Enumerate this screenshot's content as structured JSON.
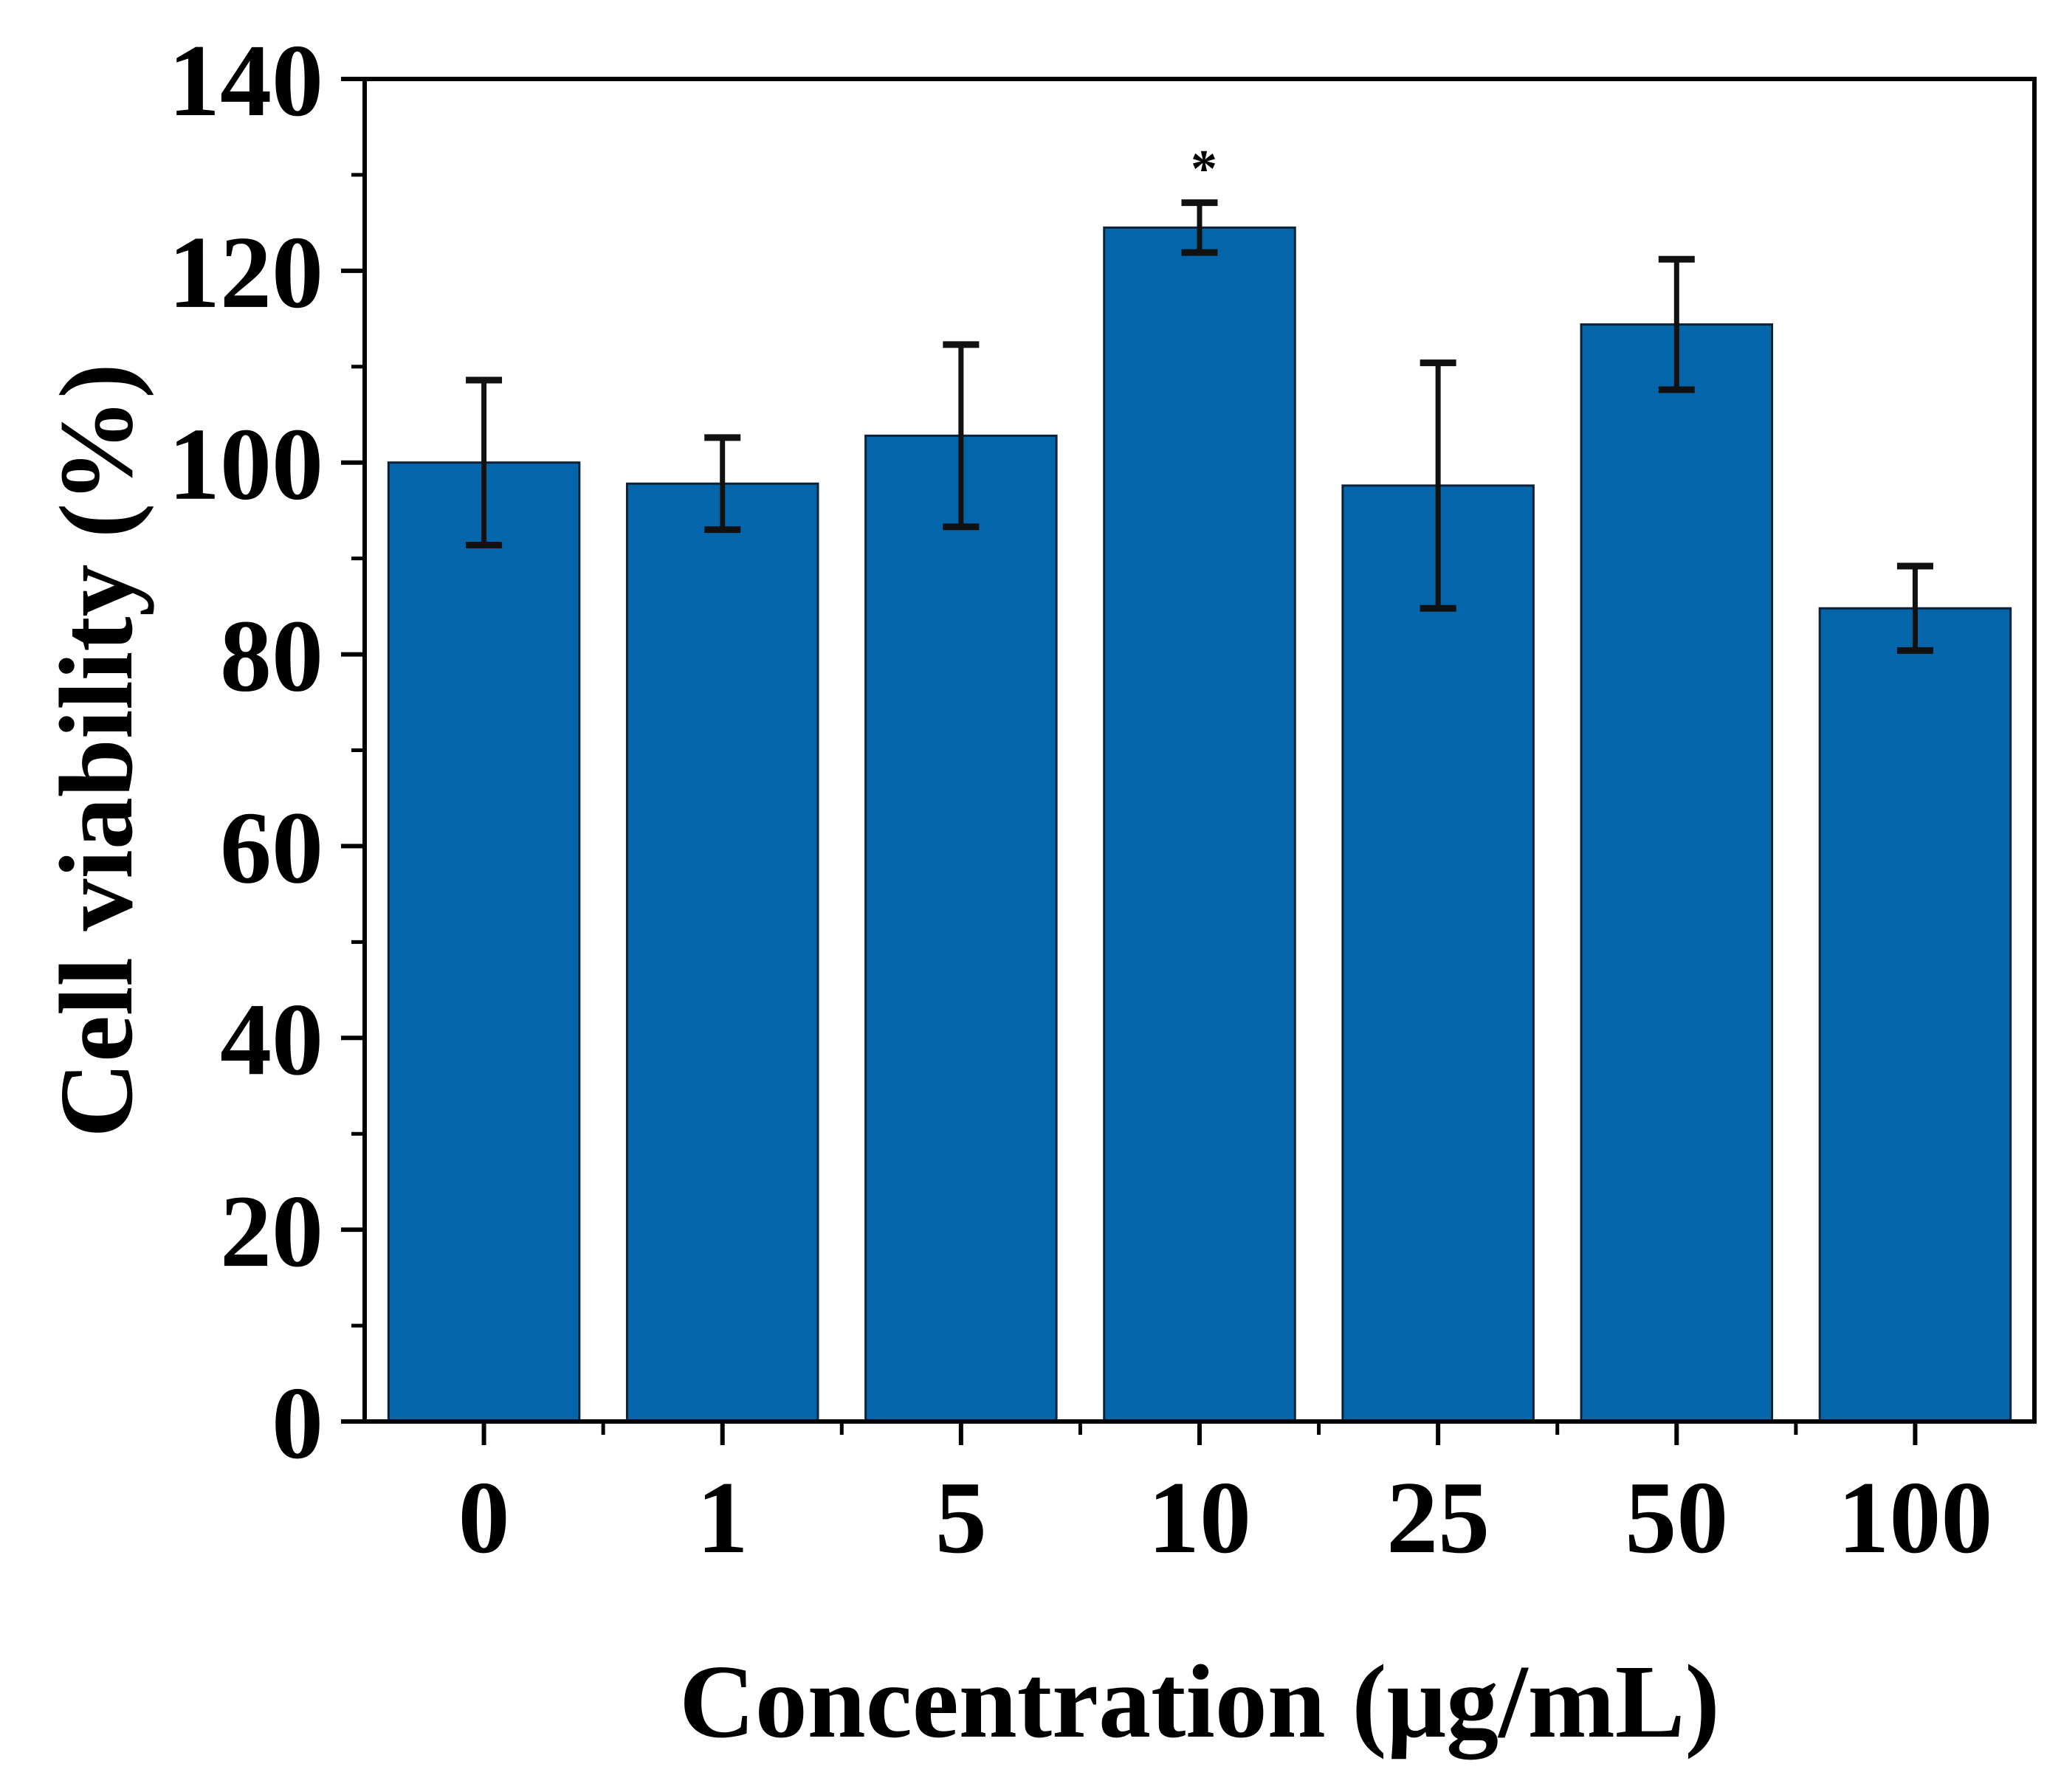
{
  "chart_data": {
    "type": "bar",
    "title": "",
    "xlabel": "Concentration (μg/mL)",
    "ylabel": "Cell viability (%)",
    "categories": [
      "0",
      "1",
      "5",
      "10",
      "25",
      "50",
      "100"
    ],
    "values": [
      100,
      97.8,
      102.8,
      124.5,
      97.6,
      114.4,
      84.8
    ],
    "errors": [
      8.6,
      4.8,
      9.5,
      2.6,
      12.8,
      6.8,
      4.4
    ],
    "significance": [
      "",
      "",
      "",
      "*",
      "",
      "",
      ""
    ],
    "ylim": [
      0,
      140
    ],
    "yticks": [
      0,
      20,
      40,
      60,
      80,
      100,
      120,
      140
    ],
    "bar_color": "#0366aa",
    "grid": false
  }
}
